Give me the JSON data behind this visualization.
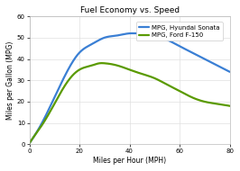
{
  "title": "Fuel Economy vs. Speed",
  "xlabel": "Miles per Hour (MPH)",
  "ylabel": "Miles per Gallon (MPG)",
  "background_color": "#ffffff",
  "plot_bg_color": "#ffffff",
  "grid_color": "#e0e0e0",
  "legend_labels": [
    "MPG, Hyundai Sonata",
    "MPG, Ford F-150"
  ],
  "line_colors": [
    "#3a7fd4",
    "#5a9a00"
  ],
  "xlim": [
    0,
    80
  ],
  "ylim": [
    0,
    60
  ],
  "xticks": [
    0,
    20,
    40,
    60,
    80
  ],
  "yticks": [
    0,
    10,
    20,
    30,
    40,
    50,
    60
  ],
  "sonata_x": [
    0,
    2,
    5,
    10,
    15,
    20,
    25,
    30,
    35,
    40,
    43,
    45,
    50,
    55,
    60,
    65,
    70,
    75,
    80
  ],
  "sonata_y": [
    0.5,
    4,
    10,
    22,
    34,
    43,
    47,
    50,
    51,
    52,
    52,
    52,
    51,
    49,
    46,
    43,
    40,
    37,
    34
  ],
  "f150_x": [
    0,
    2,
    5,
    10,
    15,
    20,
    25,
    28,
    30,
    35,
    40,
    45,
    50,
    55,
    60,
    65,
    70,
    75,
    80
  ],
  "f150_y": [
    0.5,
    4,
    9,
    19,
    29,
    35,
    37,
    38,
    38,
    37,
    35,
    33,
    31,
    28,
    25,
    22,
    20,
    19,
    18
  ],
  "title_fontsize": 6.5,
  "label_fontsize": 5.5,
  "tick_fontsize": 5,
  "legend_fontsize": 5,
  "line_width": 1.6
}
